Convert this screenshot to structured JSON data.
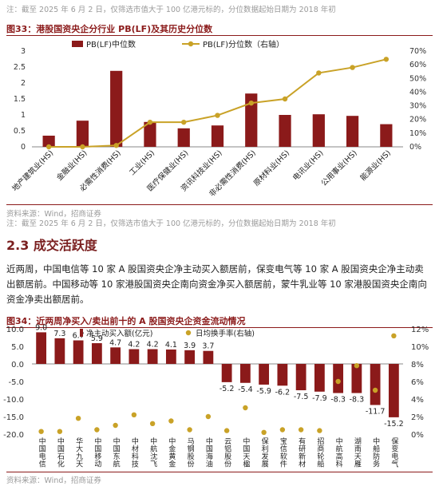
{
  "top_note": "注：截至 2025 年 6 月 2 日，仅筛选市值大于 100 亿港元标的，分位数据起始日期为 2018 年初",
  "fig33": {
    "title": "图33：港股国资央企分行业 PB(LF)及其历史分位数",
    "source": "资料来源：Wind，招商证券",
    "note": "注：截至 2025 年 6 月 2 日，仅筛选市值大于 100 亿港元标的，分位数据起始日期为 2018 年初"
  },
  "section": {
    "heading": "2.3 成交活跃度",
    "paragraph": "近两周，中国电信等 10 家 A 股国资央企净主动买入额居前，保变电气等 10 家 A 股国资央企净主动卖出额居前。中国移动等 10 家港股国资央企南向资金净买入额居前，蒙牛乳业等 10 家港股国资央企南向资金净卖出额居前。"
  },
  "fig34": {
    "title": "图34：近两周净买入/卖出前十的 A 股国资央企资金流动情况",
    "source": "资料来源：Wind，招商证券"
  },
  "chart_data": [
    {
      "type": "bar+line",
      "categories": [
        "地产建筑业(HS)",
        "金融业(HS)",
        "必需性消费(HS)",
        "工业(HS)",
        "医疗保健业(HS)",
        "资讯科技业(HS)",
        "非必需性消费(HS)",
        "原材料业(HS)",
        "电讯业(HS)",
        "公用事业(HS)",
        "能源业(HS)"
      ],
      "series": [
        {
          "name": "PB(LF)中位数",
          "axis": "left",
          "kind": "bar",
          "color": "#8b1a1a",
          "values": [
            0.35,
            0.82,
            2.38,
            0.78,
            0.58,
            0.67,
            1.67,
            1.0,
            1.02,
            0.97,
            0.71
          ]
        },
        {
          "name": "PB(LF)分位数（右轴）",
          "axis": "right",
          "kind": "line",
          "color": "#c9a227",
          "values": [
            0.0,
            0.0,
            0.01,
            0.18,
            0.18,
            0.23,
            0.32,
            0.35,
            0.54,
            0.58,
            0.64
          ]
        }
      ],
      "ylim": [
        0,
        3
      ],
      "yticks": [
        "0",
        "0.5",
        "1",
        "1.5",
        "2",
        "2.5",
        "3"
      ],
      "y2lim": [
        0,
        0.7
      ],
      "y2ticks": [
        "0%",
        "10%",
        "20%",
        "30%",
        "40%",
        "50%",
        "60%",
        "70%"
      ],
      "legend": "top"
    },
    {
      "type": "bar+scatter",
      "categories": [
        "中国电信",
        "中国石化",
        "华大九天",
        "中国移动",
        "中国东航",
        "中材科技",
        "中航沈飞",
        "中金黄金",
        "马钢股份",
        "中国海油",
        "云铝股份",
        "中国天楹",
        "保利发展",
        "宝信软件",
        "有研新材",
        "招商轮船",
        "中航高科",
        "湖南天雁",
        "中船防务",
        "保变电气"
      ],
      "series": [
        {
          "name": "净主动买入额(亿元)",
          "axis": "left",
          "kind": "bar",
          "color": "#8b1a1a",
          "values": [
            9.0,
            7.3,
            6.7,
            5.9,
            4.7,
            4.2,
            4.2,
            4.1,
            3.9,
            3.7,
            -5.2,
            -5.4,
            -5.9,
            -6.2,
            -7.5,
            -7.9,
            -8.3,
            -8.3,
            -11.7,
            -15.2
          ],
          "labels": [
            "9.0",
            "7.3",
            "6.7",
            "5.9",
            "4.7",
            "4.2",
            "4.2",
            "4.1",
            "3.9",
            "3.7",
            "-5.2",
            "-5.4",
            "-5.9",
            "-6.2",
            "-7.5",
            "-7.9",
            "-8.3",
            "-8.3",
            "-11.7",
            "-15.2"
          ]
        },
        {
          "name": "日均换手率(右轴)",
          "axis": "right",
          "kind": "scatter",
          "color": "#c9a227",
          "values": [
            0.003,
            0.003,
            0.018,
            0.005,
            0.01,
            0.022,
            0.012,
            0.015,
            0.005,
            0.02,
            0.004,
            0.03,
            0.002,
            0.005,
            0.005,
            0.004,
            0.06,
            0.078,
            0.05,
            0.112
          ]
        }
      ],
      "ylim": [
        -20,
        10
      ],
      "yticks": [
        "-20.0",
        "-15.0",
        "-10.0",
        "-5.0",
        "0.0",
        "5.0",
        "10.0"
      ],
      "y2lim": [
        0,
        0.12
      ],
      "y2ticks": [
        "0%",
        "2%",
        "4%",
        "6%",
        "8%",
        "10%",
        "12%"
      ],
      "legend": "top"
    }
  ]
}
